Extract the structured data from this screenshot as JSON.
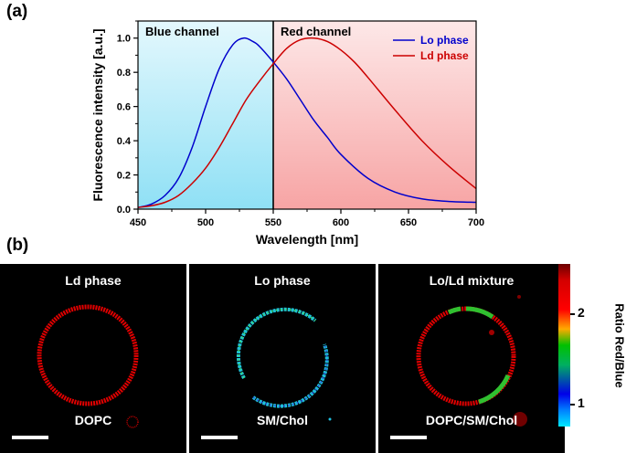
{
  "panel_a_label": "(a)",
  "panel_b_label": "(b)",
  "chart_data": {
    "type": "line",
    "xlabel": "Wavelength [nm]",
    "ylabel": "Fluorescence intensity [a.u.]",
    "xlim": [
      450,
      700
    ],
    "ylim": [
      0,
      1.1
    ],
    "x_ticks": [
      450,
      500,
      550,
      600,
      650,
      700
    ],
    "y_ticks": [
      "0.0",
      "0.2",
      "0.4",
      "0.6",
      "0.8",
      "1.0"
    ],
    "grid": false,
    "legend_position": "top-right",
    "regions": [
      {
        "label": "Blue channel",
        "x_from": 450,
        "x_to": 550,
        "color": "#c6eefa"
      },
      {
        "label": "Red channel",
        "x_from": 550,
        "x_to": 700,
        "color": "#fbd0d0"
      }
    ],
    "divider_x": 550,
    "series": [
      {
        "name": "Lo phase",
        "color": "#0000cc",
        "x": [
          450,
          460,
          470,
          480,
          490,
          500,
          510,
          520,
          528,
          535,
          540,
          550,
          560,
          570,
          580,
          590,
          600,
          620,
          640,
          660,
          680,
          700
        ],
        "y": [
          0.01,
          0.03,
          0.08,
          0.18,
          0.36,
          0.6,
          0.82,
          0.96,
          1.0,
          0.98,
          0.95,
          0.86,
          0.76,
          0.64,
          0.52,
          0.42,
          0.32,
          0.18,
          0.1,
          0.06,
          0.045,
          0.04
        ]
      },
      {
        "name": "Ld phase",
        "color": "#cc0000",
        "x": [
          450,
          460,
          470,
          480,
          490,
          500,
          510,
          520,
          530,
          540,
          550,
          560,
          570,
          580,
          590,
          600,
          610,
          620,
          640,
          660,
          680,
          700
        ],
        "y": [
          0.01,
          0.02,
          0.04,
          0.08,
          0.15,
          0.24,
          0.36,
          0.5,
          0.64,
          0.75,
          0.85,
          0.94,
          0.99,
          1.0,
          0.98,
          0.93,
          0.86,
          0.77,
          0.58,
          0.4,
          0.25,
          0.12
        ]
      }
    ]
  },
  "images": [
    {
      "title": "Ld phase",
      "sample": "DOPC"
    },
    {
      "title": "Lo phase",
      "sample": "SM/Chol"
    },
    {
      "title": "Lo/Ld mixture",
      "sample": "DOPC/SM/Chol"
    }
  ],
  "colorbar": {
    "title": "Ratio Red/Blue",
    "ticks": [
      "2",
      "1"
    ]
  }
}
